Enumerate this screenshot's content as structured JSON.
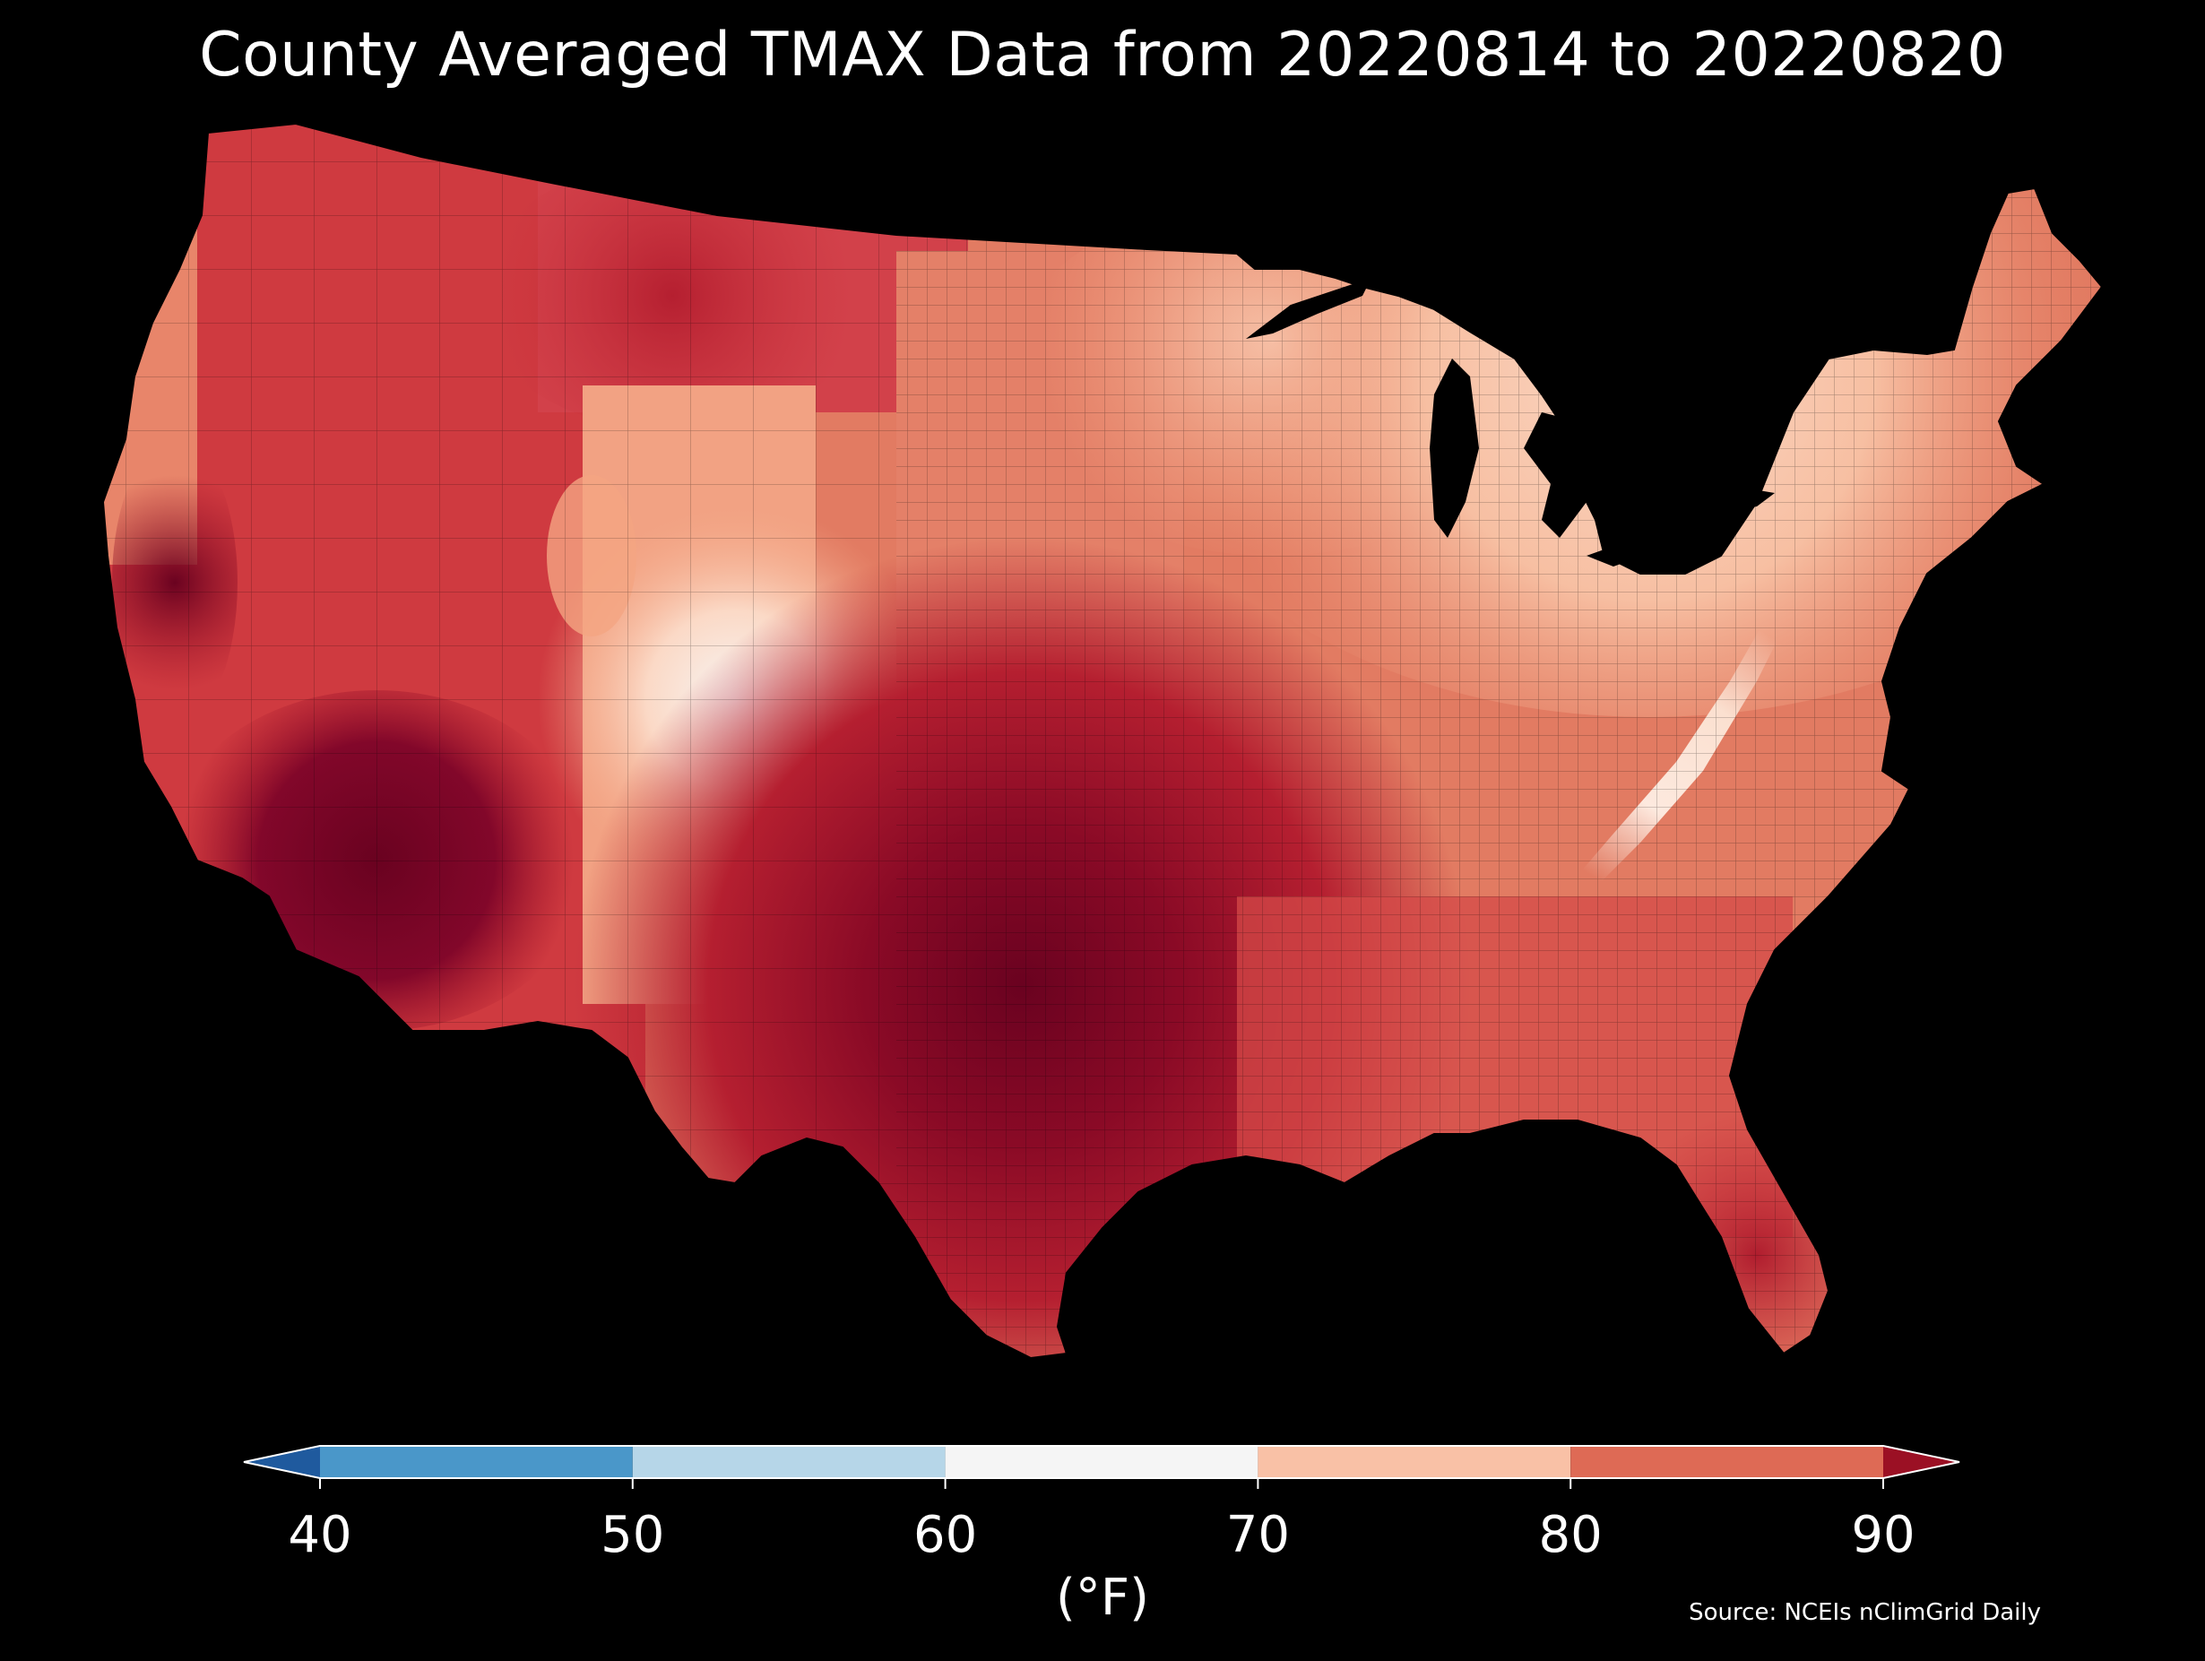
{
  "title": "County Averaged TMAX Data from 20220814 to 20220820",
  "source": "Source: NCEIs nClimGrid Daily",
  "colorbar": {
    "unit": "(°F)",
    "ticks": [
      "40",
      "50",
      "60",
      "70",
      "80",
      "90"
    ],
    "bins": [
      {
        "range": [
          40,
          50
        ],
        "color": "#4a97c9"
      },
      {
        "range": [
          50,
          60
        ],
        "color": "#b6d6e8"
      },
      {
        "range": [
          60,
          70
        ],
        "color": "#f5f5f5"
      },
      {
        "range": [
          70,
          80
        ],
        "color": "#f9c1a6"
      },
      {
        "range": [
          80,
          90
        ],
        "color": "#de6a55"
      }
    ],
    "extend_low_color": "#1f5a9e",
    "extend_high_color": "#9b1024"
  },
  "map": {
    "region": "Contiguous United States",
    "background_color": "#000000",
    "palette": {
      "70-75": "#fbd9c6",
      "75-80": "#f4a582",
      "80-85": "#e4765f",
      "85-90": "#c8303b",
      "90-95": "#a01328",
      "95+": "#6a0220"
    }
  }
}
